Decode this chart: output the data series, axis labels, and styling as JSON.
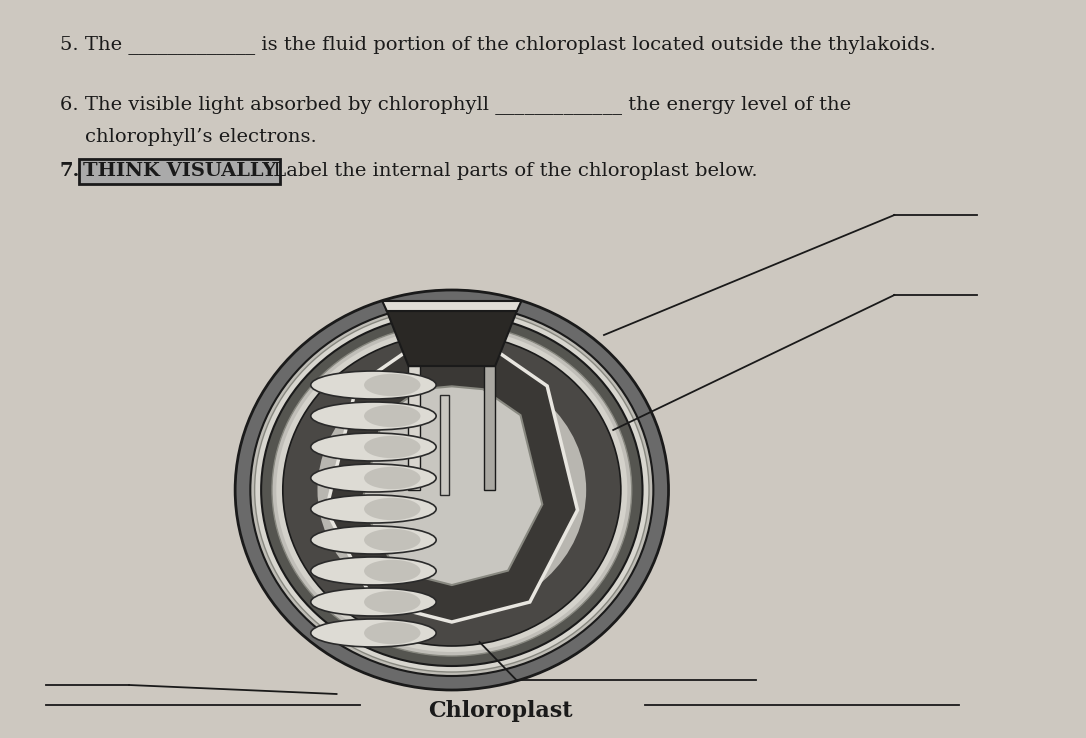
{
  "bg_color": "#cdc8c0",
  "text_color": "#1a1a1a",
  "text5": "5. The _____________ is the fluid portion of the chloroplast located outside the thylakoids.",
  "text6a": "6. The visible light absorbed by chlorophyll _____________ the energy level of the",
  "text6b": "    chlorophyll’s electrons.",
  "text7": "7.",
  "think_visually": "THINK VISUALLY",
  "text7_rest": " Label the internal parts of the chloroplast below.",
  "chloroplast_label": "Chloroplast",
  "outer_color": "#7a7a7a",
  "outer_edge": "#1a1a1a",
  "ring_light": "#c8c8c0",
  "ring_dark": "#555555",
  "inner_dark": "#404040",
  "inner_mid": "#888880",
  "inner_light": "#c0bfb8",
  "stroma_color": "#9a9a94",
  "cut_dark": "#2a2a2a",
  "cut_light": "#d8d8d0",
  "disc_color": "#e0dfd8",
  "disc_edge": "#2a2a2a"
}
